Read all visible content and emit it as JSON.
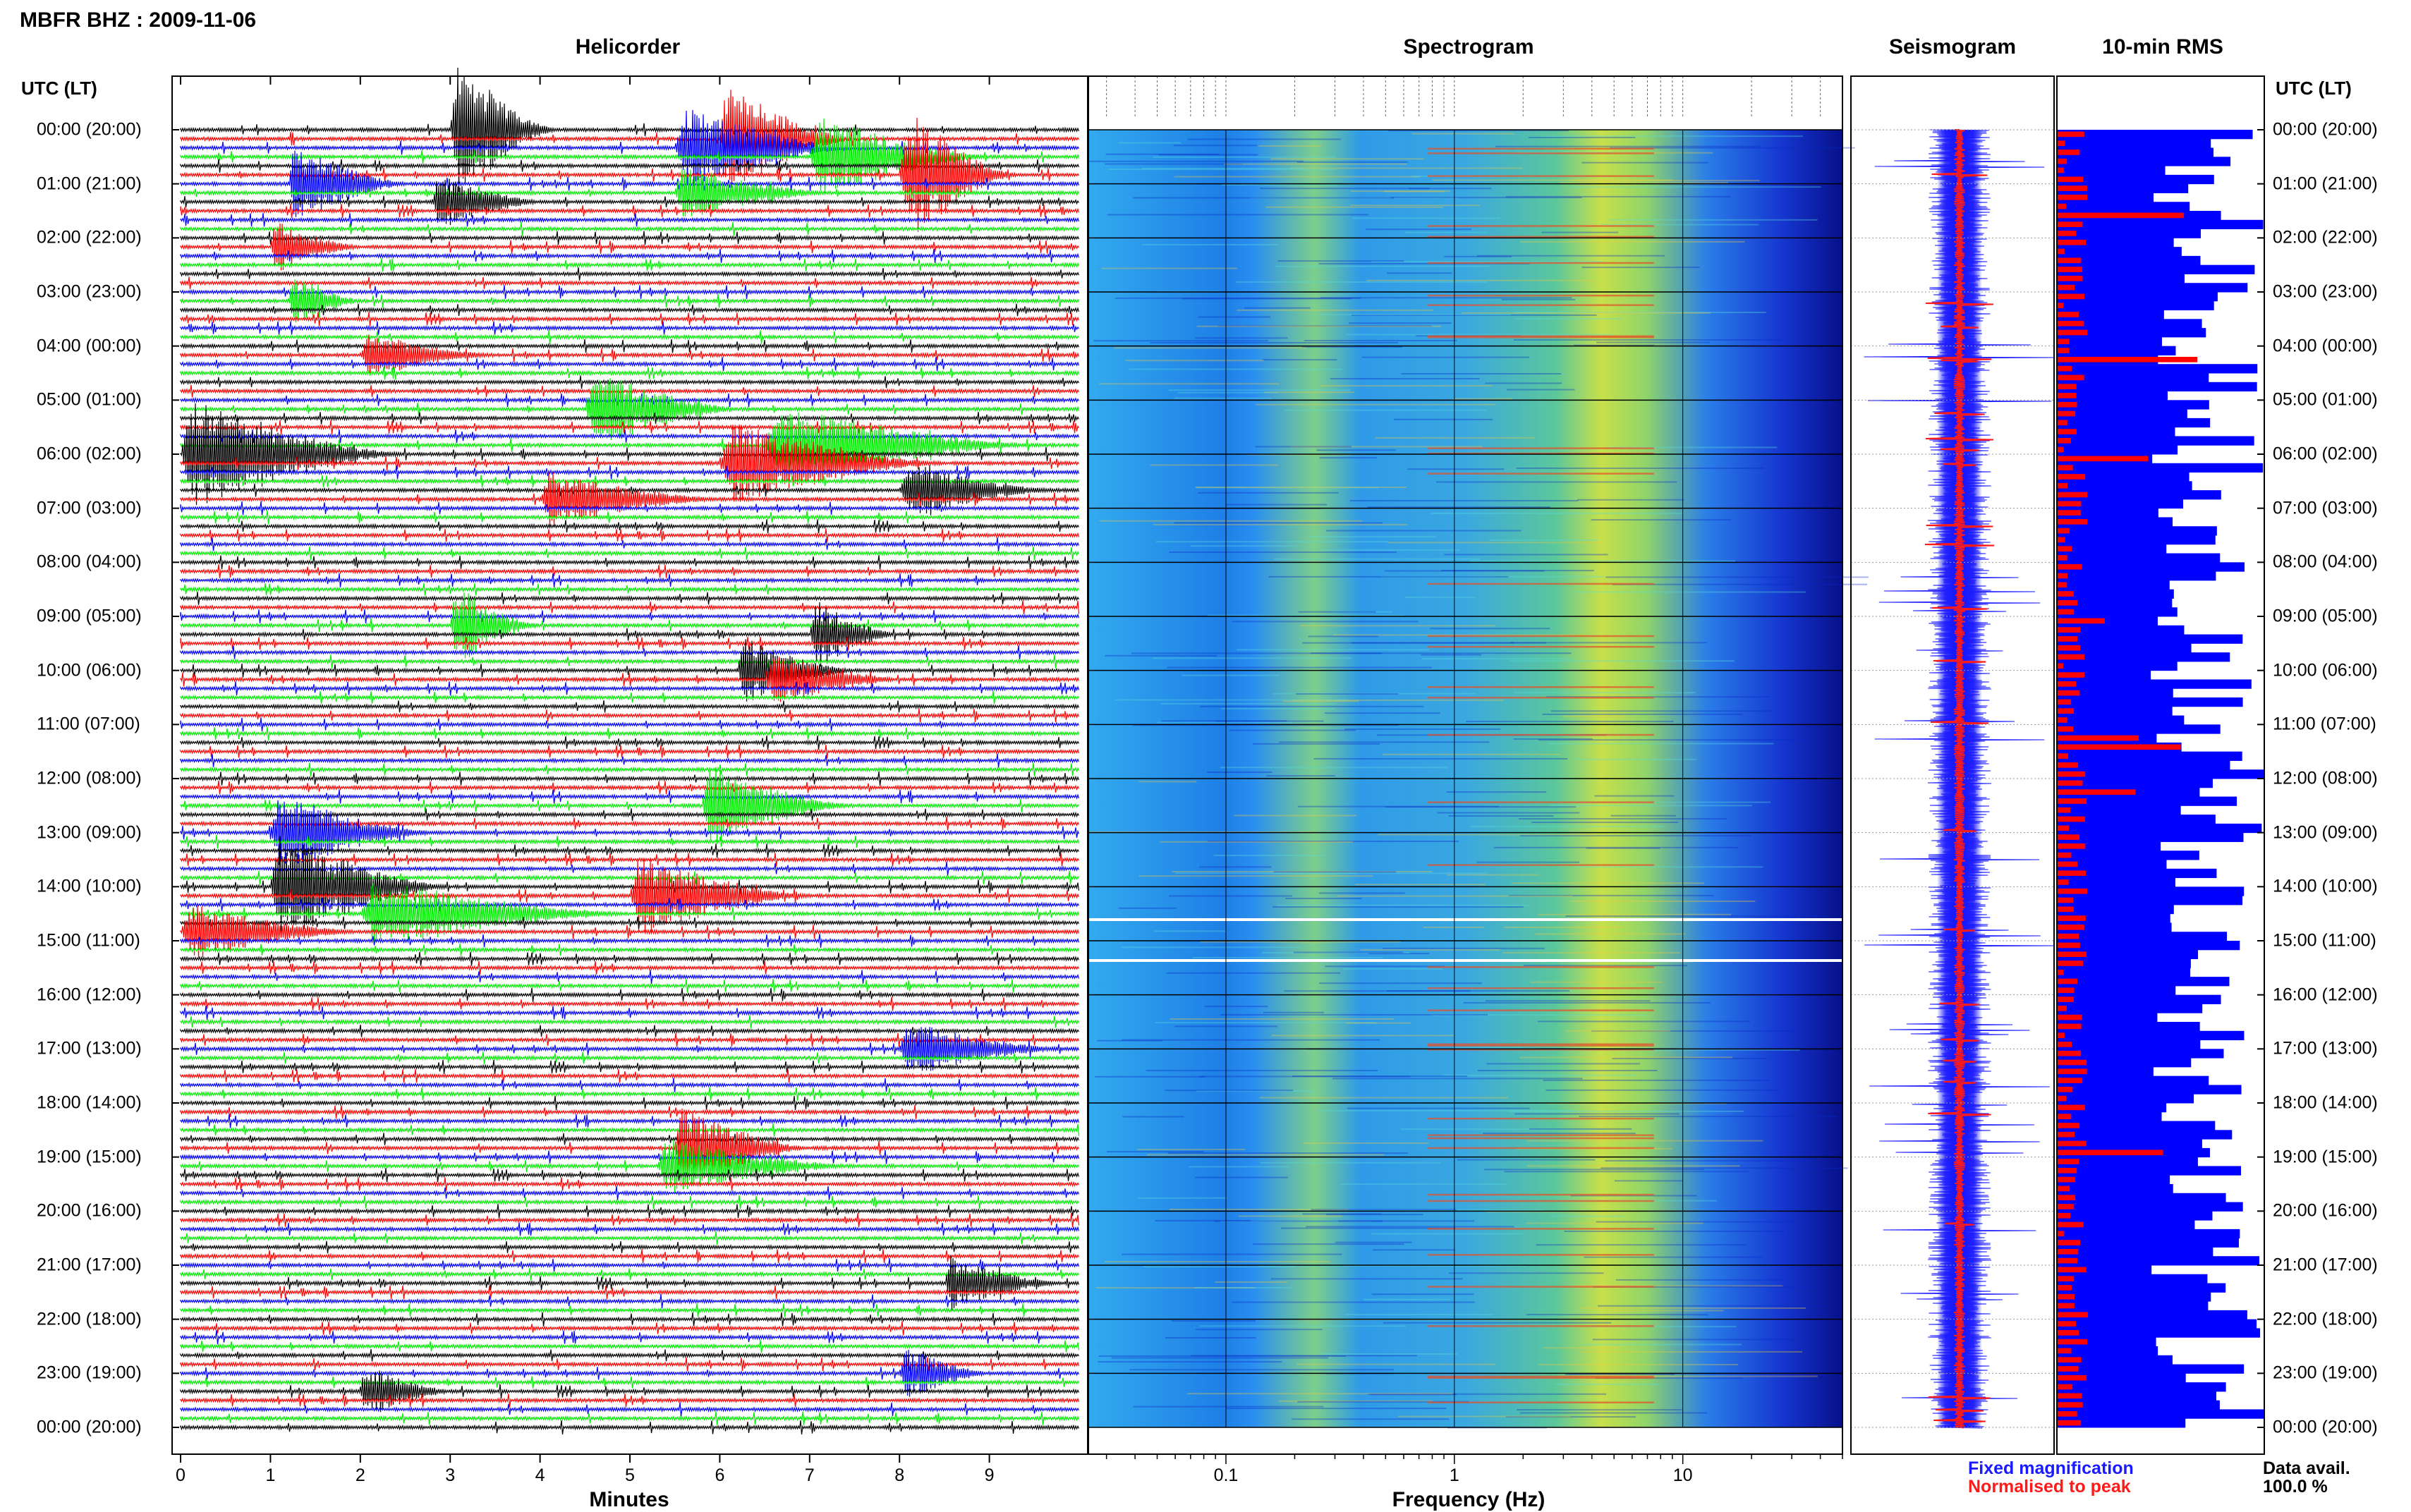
{
  "title": "MBFR BHZ : 2009-11-06",
  "panels": {
    "helicorder": "Helicorder",
    "spectrogram": "Spectrogram",
    "seismogram": "Seismogram",
    "rms": "10-min RMS"
  },
  "time_axis_title": "UTC (LT)",
  "time_labels": [
    "00:00 (20:00)",
    "01:00 (21:00)",
    "02:00 (22:00)",
    "03:00 (23:00)",
    "04:00 (00:00)",
    "05:00 (01:00)",
    "06:00 (02:00)",
    "07:00 (03:00)",
    "08:00 (04:00)",
    "09:00 (05:00)",
    "10:00 (06:00)",
    "11:00 (07:00)",
    "12:00 (08:00)",
    "13:00 (09:00)",
    "14:00 (10:00)",
    "15:00 (11:00)",
    "16:00 (12:00)",
    "17:00 (13:00)",
    "18:00 (14:00)",
    "19:00 (15:00)",
    "20:00 (16:00)",
    "21:00 (17:00)",
    "22:00 (18:00)",
    "23:00 (19:00)",
    "00:00 (20:00)"
  ],
  "legend": {
    "fixed": "Fixed magnification",
    "normalised": "Normalised to peak",
    "colors": {
      "fixed": "#1a1aff",
      "normalised": "#ff1a1a"
    }
  },
  "data_avail": {
    "label": "Data avail.",
    "value": "100.0 %"
  },
  "chart_data": [
    {
      "type": "line",
      "title": "Helicorder",
      "xlabel": "Minutes",
      "x_ticks": [
        0,
        1,
        2,
        3,
        4,
        5,
        6,
        7,
        8,
        9
      ],
      "x_range": [
        0,
        10
      ],
      "rows_per_hour": 6,
      "trace_colors": [
        "#000000",
        "#ff0000",
        "#0000ff",
        "#00ee00"
      ],
      "events": [
        {
          "row": 0,
          "start": 3.0,
          "end": 4.2,
          "amp": 5
        },
        {
          "row": 1,
          "start": 6.0,
          "end": 7.5,
          "amp": 4
        },
        {
          "row": 2,
          "start": 5.5,
          "end": 7.5,
          "amp": 3
        },
        {
          "row": 3,
          "start": 7.0,
          "end": 9.0,
          "amp": 3
        },
        {
          "row": 5,
          "start": 8.0,
          "end": 9.3,
          "amp": 5
        },
        {
          "row": 6,
          "start": 1.2,
          "end": 2.5,
          "amp": 3
        },
        {
          "row": 7,
          "start": 5.5,
          "end": 7.2,
          "amp": 2
        },
        {
          "row": 8,
          "start": 2.8,
          "end": 4.0,
          "amp": 2
        },
        {
          "row": 13,
          "start": 1.0,
          "end": 2.0,
          "amp": 2
        },
        {
          "row": 19,
          "start": 1.2,
          "end": 2.0,
          "amp": 2
        },
        {
          "row": 25,
          "start": 2.0,
          "end": 3.5,
          "amp": 1.5
        },
        {
          "row": 31,
          "start": 4.5,
          "end": 6.2,
          "amp": 3
        },
        {
          "row": 35,
          "start": 6.5,
          "end": 9.5,
          "amp": 3
        },
        {
          "row": 36,
          "start": 0.0,
          "end": 2.5,
          "amp": 4
        },
        {
          "row": 37,
          "start": 6.0,
          "end": 8.5,
          "amp": 3
        },
        {
          "row": 40,
          "start": 8.0,
          "end": 9.7,
          "amp": 2
        },
        {
          "row": 41,
          "start": 4.0,
          "end": 6.0,
          "amp": 2
        },
        {
          "row": 55,
          "start": 3.0,
          "end": 4.0,
          "amp": 3
        },
        {
          "row": 56,
          "start": 7.0,
          "end": 8.0,
          "amp": 2.5
        },
        {
          "row": 60,
          "start": 6.2,
          "end": 7.5,
          "amp": 2.5
        },
        {
          "row": 61,
          "start": 6.5,
          "end": 8.0,
          "amp": 2
        },
        {
          "row": 75,
          "start": 5.8,
          "end": 7.5,
          "amp": 3
        },
        {
          "row": 78,
          "start": 1.0,
          "end": 2.8,
          "amp": 3
        },
        {
          "row": 84,
          "start": 1.0,
          "end": 3.0,
          "amp": 4
        },
        {
          "row": 85,
          "start": 5.0,
          "end": 7.0,
          "amp": 3
        },
        {
          "row": 87,
          "start": 2.0,
          "end": 5.0,
          "amp": 2.5
        },
        {
          "row": 89,
          "start": 0.0,
          "end": 2.0,
          "amp": 2
        },
        {
          "row": 102,
          "start": 8.0,
          "end": 9.8,
          "amp": 2
        },
        {
          "row": 113,
          "start": 5.5,
          "end": 7.0,
          "amp": 3
        },
        {
          "row": 115,
          "start": 5.3,
          "end": 7.5,
          "amp": 2
        },
        {
          "row": 128,
          "start": 8.5,
          "end": 9.8,
          "amp": 2
        },
        {
          "row": 138,
          "start": 8.0,
          "end": 9.0,
          "amp": 2
        },
        {
          "row": 140,
          "start": 2.0,
          "end": 3.0,
          "amp": 2
        }
      ]
    },
    {
      "type": "heatmap",
      "title": "Spectrogram",
      "xlabel": "Frequency (Hz)",
      "x_scale": "log",
      "x_range": [
        0.025,
        50
      ],
      "x_tick_labels": [
        "0.1",
        "1",
        "10"
      ],
      "x_tick_values": [
        0.1,
        1,
        10
      ]
    },
    {
      "type": "line",
      "title": "Seismogram",
      "series": [
        {
          "name": "Fixed magnification",
          "color": "#1a1aff"
        },
        {
          "name": "Normalised to peak",
          "color": "#ff1a1a"
        }
      ]
    },
    {
      "type": "bar",
      "title": "10-min RMS",
      "series": [
        {
          "name": "Fixed magnification",
          "color": "#0000ff"
        },
        {
          "name": "Normalised to peak",
          "color": "#ff0000"
        }
      ]
    }
  ]
}
